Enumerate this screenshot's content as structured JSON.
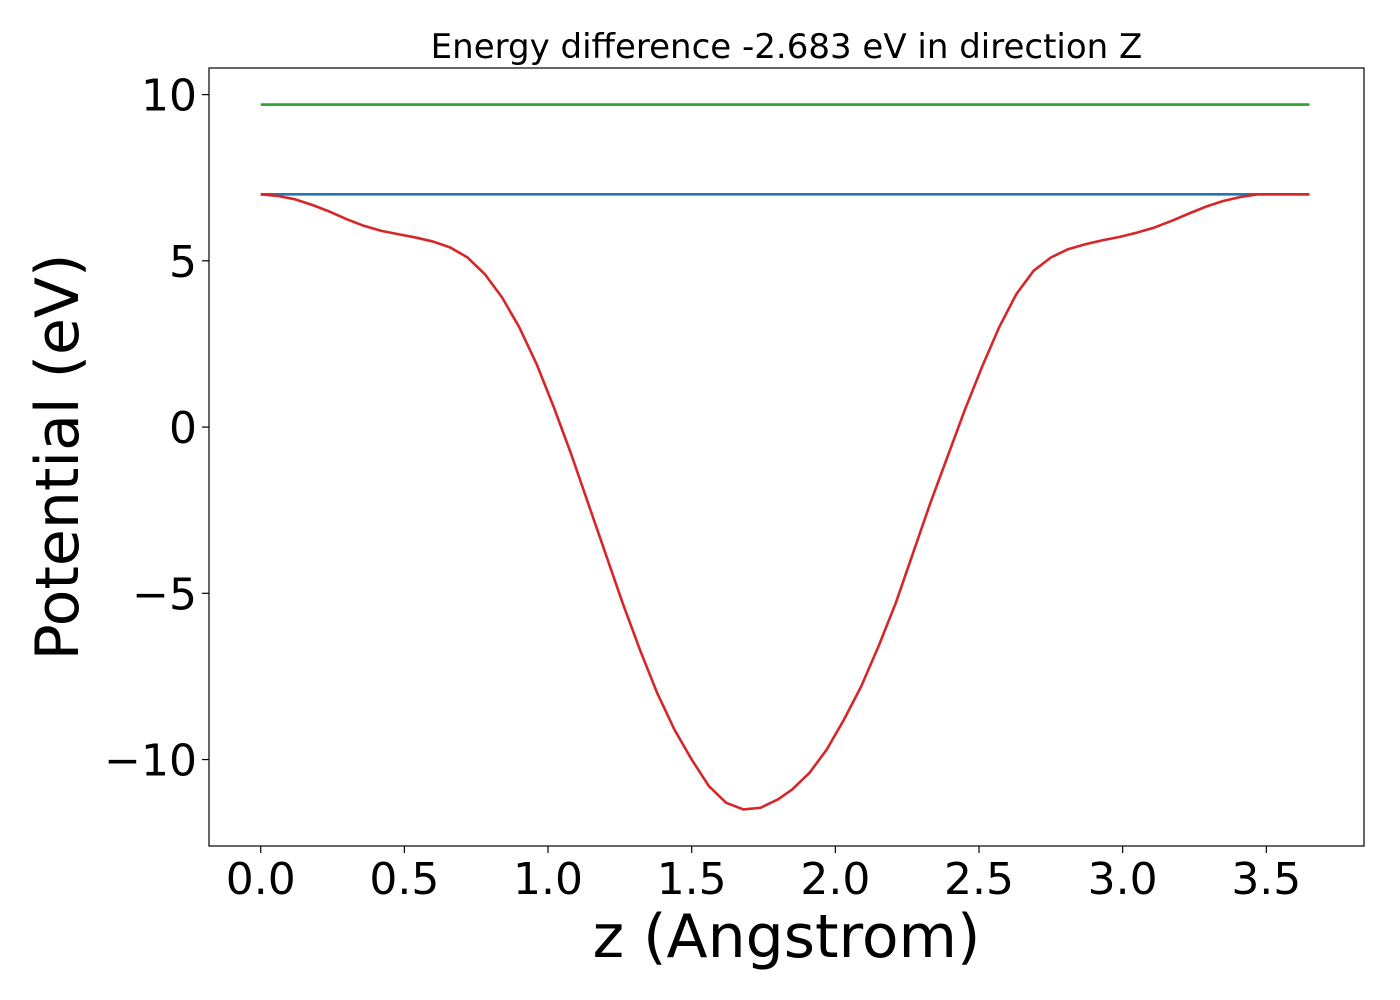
{
  "chart_data": {
    "type": "line",
    "title": "Energy difference -2.683 eV in direction Z",
    "xlabel": "z (Angstrom)",
    "ylabel": "Potential (eV)",
    "xlim": [
      -0.18,
      3.84
    ],
    "ylim": [
      -12.6,
      10.8
    ],
    "xticks": [
      0.0,
      0.5,
      1.0,
      1.5,
      2.0,
      2.5,
      3.0,
      3.5
    ],
    "xtick_labels": [
      "0.0",
      "0.5",
      "1.0",
      "1.5",
      "2.0",
      "2.5",
      "3.0",
      "3.5"
    ],
    "yticks": [
      10,
      5,
      0,
      -5,
      -10
    ],
    "ytick_labels": [
      "10",
      "5",
      "0",
      "−5",
      "−10"
    ],
    "grid": false,
    "series": [
      {
        "color": "#2ca02c",
        "x": [
          0.0,
          3.65
        ],
        "y": [
          9.7,
          9.7
        ]
      },
      {
        "color": "#1f77b4",
        "x": [
          0.0,
          3.65
        ],
        "y": [
          7.0,
          7.0
        ]
      },
      {
        "color": "#d62728",
        "x": [
          0.0,
          0.06,
          0.12,
          0.18,
          0.24,
          0.3,
          0.36,
          0.42,
          0.48,
          0.54,
          0.6,
          0.66,
          0.72,
          0.78,
          0.84,
          0.9,
          0.96,
          1.02,
          1.08,
          1.14,
          1.2,
          1.26,
          1.32,
          1.38,
          1.44,
          1.5,
          1.56,
          1.62,
          1.68,
          1.74,
          1.8,
          1.85,
          1.91,
          1.97,
          2.03,
          2.09,
          2.15,
          2.21,
          2.27,
          2.33,
          2.39,
          2.45,
          2.51,
          2.57,
          2.63,
          2.69,
          2.75,
          2.81,
          2.87,
          2.93,
          2.99,
          3.05,
          3.11,
          3.17,
          3.23,
          3.29,
          3.35,
          3.41,
          3.47,
          3.53,
          3.59,
          3.65
        ],
        "y": [
          7.0,
          6.95,
          6.85,
          6.68,
          6.48,
          6.25,
          6.05,
          5.9,
          5.8,
          5.7,
          5.58,
          5.4,
          5.1,
          4.6,
          3.9,
          3.0,
          1.9,
          0.6,
          -0.8,
          -2.3,
          -3.8,
          -5.3,
          -6.7,
          -8.0,
          -9.1,
          -10.0,
          -10.8,
          -11.3,
          -11.5,
          -11.45,
          -11.2,
          -10.9,
          -10.4,
          -9.7,
          -8.8,
          -7.8,
          -6.6,
          -5.3,
          -3.8,
          -2.3,
          -0.9,
          0.5,
          1.8,
          3.0,
          4.0,
          4.7,
          5.1,
          5.35,
          5.5,
          5.62,
          5.72,
          5.85,
          6.0,
          6.2,
          6.42,
          6.63,
          6.8,
          6.92,
          7.0,
          7.0,
          7.0,
          7.0
        ]
      }
    ]
  }
}
